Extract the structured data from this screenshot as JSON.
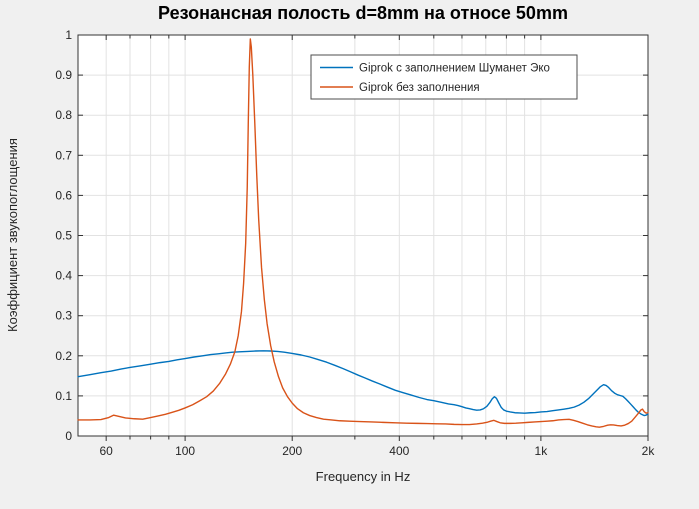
{
  "figure": {
    "background_color": "#f0f0f0",
    "plot_background": "#ffffff",
    "grid_color": "#e2e2e2",
    "axis_color": "#333333",
    "text_color": "#262626",
    "title_color": "#000000",
    "legend_border_color": "#4d4d4d"
  },
  "chart_data": {
    "type": "line",
    "title": "Резонансная полость d=8mm на относе 50mm",
    "xlabel": "Frequency in Hz",
    "ylabel": "Коэффициент звукопоглощения",
    "x_scale": "log",
    "xlim": [
      50,
      2000
    ],
    "ylim": [
      0,
      1
    ],
    "grid": true,
    "legend_position": "inside-top-right",
    "x_ticks": [
      {
        "value": 60,
        "label": "60"
      },
      {
        "value": 100,
        "label": "100"
      },
      {
        "value": 200,
        "label": "200"
      },
      {
        "value": 400,
        "label": "400"
      },
      {
        "value": 1000,
        "label": "1k"
      },
      {
        "value": 2000,
        "label": "2k"
      }
    ],
    "x_grid": [
      60,
      70,
      80,
      90,
      100,
      200,
      300,
      400,
      500,
      600,
      700,
      800,
      900,
      1000,
      2000
    ],
    "y_ticks": [
      {
        "value": 0,
        "label": "0"
      },
      {
        "value": 0.1,
        "label": "0.1"
      },
      {
        "value": 0.2,
        "label": "0.2"
      },
      {
        "value": 0.3,
        "label": "0.3"
      },
      {
        "value": 0.4,
        "label": "0.4"
      },
      {
        "value": 0.5,
        "label": "0.5"
      },
      {
        "value": 0.6,
        "label": "0.6"
      },
      {
        "value": 0.7,
        "label": "0.7"
      },
      {
        "value": 0.8,
        "label": "0.8"
      },
      {
        "value": 0.9,
        "label": "0.9"
      },
      {
        "value": 1,
        "label": "1"
      }
    ],
    "series": [
      {
        "name": "Giprok с заполнением Шуманет Эко",
        "color": "#0072BD",
        "points": [
          [
            50,
            0.148
          ],
          [
            54,
            0.153
          ],
          [
            58,
            0.158
          ],
          [
            62,
            0.162
          ],
          [
            66,
            0.167
          ],
          [
            70,
            0.171
          ],
          [
            75,
            0.175
          ],
          [
            80,
            0.179
          ],
          [
            85,
            0.183
          ],
          [
            90,
            0.186
          ],
          [
            95,
            0.19
          ],
          [
            100,
            0.193
          ],
          [
            106,
            0.197
          ],
          [
            112,
            0.2
          ],
          [
            118,
            0.203
          ],
          [
            124,
            0.205
          ],
          [
            130,
            0.207
          ],
          [
            136,
            0.209
          ],
          [
            142,
            0.21
          ],
          [
            150,
            0.211
          ],
          [
            158,
            0.212
          ],
          [
            166,
            0.2125
          ],
          [
            174,
            0.212
          ],
          [
            182,
            0.211
          ],
          [
            190,
            0.209
          ],
          [
            200,
            0.206
          ],
          [
            212,
            0.202
          ],
          [
            224,
            0.197
          ],
          [
            236,
            0.191
          ],
          [
            250,
            0.184
          ],
          [
            264,
            0.176
          ],
          [
            278,
            0.168
          ],
          [
            292,
            0.16
          ],
          [
            306,
            0.152
          ],
          [
            320,
            0.145
          ],
          [
            336,
            0.137
          ],
          [
            352,
            0.13
          ],
          [
            370,
            0.122
          ],
          [
            390,
            0.114
          ],
          [
            410,
            0.108
          ],
          [
            432,
            0.102
          ],
          [
            455,
            0.096
          ],
          [
            478,
            0.091
          ],
          [
            500,
            0.088
          ],
          [
            525,
            0.084
          ],
          [
            550,
            0.08
          ],
          [
            570,
            0.078
          ],
          [
            585,
            0.076
          ],
          [
            600,
            0.073
          ],
          [
            615,
            0.07
          ],
          [
            630,
            0.068
          ],
          [
            645,
            0.066
          ],
          [
            660,
            0.0645
          ],
          [
            675,
            0.065
          ],
          [
            690,
            0.068
          ],
          [
            705,
            0.074
          ],
          [
            718,
            0.083
          ],
          [
            730,
            0.093
          ],
          [
            740,
            0.098
          ],
          [
            750,
            0.094
          ],
          [
            762,
            0.082
          ],
          [
            774,
            0.071
          ],
          [
            786,
            0.065
          ],
          [
            800,
            0.062
          ],
          [
            820,
            0.06
          ],
          [
            845,
            0.058
          ],
          [
            870,
            0.0575
          ],
          [
            900,
            0.057
          ],
          [
            935,
            0.058
          ],
          [
            965,
            0.0585
          ],
          [
            1000,
            0.06
          ],
          [
            1040,
            0.061
          ],
          [
            1080,
            0.063
          ],
          [
            1120,
            0.065
          ],
          [
            1160,
            0.067
          ],
          [
            1200,
            0.069
          ],
          [
            1240,
            0.072
          ],
          [
            1280,
            0.077
          ],
          [
            1320,
            0.084
          ],
          [
            1360,
            0.093
          ],
          [
            1400,
            0.104
          ],
          [
            1440,
            0.115
          ],
          [
            1470,
            0.123
          ],
          [
            1500,
            0.128
          ],
          [
            1525,
            0.126
          ],
          [
            1550,
            0.121
          ],
          [
            1580,
            0.113
          ],
          [
            1610,
            0.107
          ],
          [
            1640,
            0.103
          ],
          [
            1670,
            0.101
          ],
          [
            1700,
            0.099
          ],
          [
            1730,
            0.093
          ],
          [
            1760,
            0.086
          ],
          [
            1790,
            0.079
          ],
          [
            1820,
            0.072
          ],
          [
            1850,
            0.065
          ],
          [
            1880,
            0.059
          ],
          [
            1910,
            0.055
          ],
          [
            1950,
            0.051
          ],
          [
            1975,
            0.052
          ],
          [
            2000,
            0.055
          ]
        ]
      },
      {
        "name": "Giprok без заполнения",
        "color": "#D95319",
        "points": [
          [
            50,
            0.04
          ],
          [
            54,
            0.04
          ],
          [
            58,
            0.041
          ],
          [
            61,
            0.046
          ],
          [
            63,
            0.052
          ],
          [
            65,
            0.049
          ],
          [
            68,
            0.045
          ],
          [
            72,
            0.043
          ],
          [
            76,
            0.042
          ],
          [
            80,
            0.046
          ],
          [
            84,
            0.05
          ],
          [
            88,
            0.054
          ],
          [
            92,
            0.059
          ],
          [
            96,
            0.064
          ],
          [
            100,
            0.07
          ],
          [
            105,
            0.078
          ],
          [
            110,
            0.088
          ],
          [
            115,
            0.098
          ],
          [
            120,
            0.112
          ],
          [
            125,
            0.131
          ],
          [
            130,
            0.155
          ],
          [
            134,
            0.179
          ],
          [
            138,
            0.21
          ],
          [
            141,
            0.25
          ],
          [
            144,
            0.31
          ],
          [
            146,
            0.38
          ],
          [
            148,
            0.48
          ],
          [
            149.5,
            0.62
          ],
          [
            150.5,
            0.78
          ],
          [
            151.5,
            0.92
          ],
          [
            152.5,
            0.99
          ],
          [
            153.5,
            0.97
          ],
          [
            155,
            0.9
          ],
          [
            157,
            0.78
          ],
          [
            159,
            0.65
          ],
          [
            161,
            0.54
          ],
          [
            164,
            0.42
          ],
          [
            167,
            0.34
          ],
          [
            170,
            0.28
          ],
          [
            174,
            0.225
          ],
          [
            178,
            0.185
          ],
          [
            183,
            0.148
          ],
          [
            188,
            0.12
          ],
          [
            194,
            0.098
          ],
          [
            200,
            0.082
          ],
          [
            207,
            0.068
          ],
          [
            215,
            0.058
          ],
          [
            224,
            0.051
          ],
          [
            234,
            0.046
          ],
          [
            245,
            0.042
          ],
          [
            258,
            0.04
          ],
          [
            272,
            0.038
          ],
          [
            290,
            0.037
          ],
          [
            310,
            0.036
          ],
          [
            335,
            0.035
          ],
          [
            360,
            0.034
          ],
          [
            390,
            0.033
          ],
          [
            420,
            0.032
          ],
          [
            450,
            0.0315
          ],
          [
            480,
            0.031
          ],
          [
            510,
            0.0305
          ],
          [
            540,
            0.03
          ],
          [
            570,
            0.029
          ],
          [
            600,
            0.0285
          ],
          [
            630,
            0.0285
          ],
          [
            660,
            0.03
          ],
          [
            685,
            0.032
          ],
          [
            705,
            0.034
          ],
          [
            722,
            0.037
          ],
          [
            738,
            0.039
          ],
          [
            752,
            0.036
          ],
          [
            768,
            0.033
          ],
          [
            790,
            0.0315
          ],
          [
            820,
            0.0315
          ],
          [
            850,
            0.032
          ],
          [
            885,
            0.033
          ],
          [
            920,
            0.034
          ],
          [
            960,
            0.035
          ],
          [
            1000,
            0.036
          ],
          [
            1040,
            0.037
          ],
          [
            1080,
            0.038
          ],
          [
            1120,
            0.04
          ],
          [
            1160,
            0.041
          ],
          [
            1200,
            0.0415
          ],
          [
            1235,
            0.039
          ],
          [
            1270,
            0.036
          ],
          [
            1310,
            0.032
          ],
          [
            1350,
            0.028
          ],
          [
            1390,
            0.025
          ],
          [
            1430,
            0.023
          ],
          [
            1460,
            0.022
          ],
          [
            1500,
            0.024
          ],
          [
            1540,
            0.027
          ],
          [
            1570,
            0.028
          ],
          [
            1600,
            0.0275
          ],
          [
            1640,
            0.026
          ],
          [
            1680,
            0.025
          ],
          [
            1720,
            0.027
          ],
          [
            1760,
            0.031
          ],
          [
            1800,
            0.037
          ],
          [
            1840,
            0.047
          ],
          [
            1880,
            0.057
          ],
          [
            1910,
            0.065
          ],
          [
            1930,
            0.067
          ],
          [
            1950,
            0.061
          ],
          [
            1975,
            0.057
          ],
          [
            2000,
            0.058
          ]
        ]
      }
    ]
  }
}
